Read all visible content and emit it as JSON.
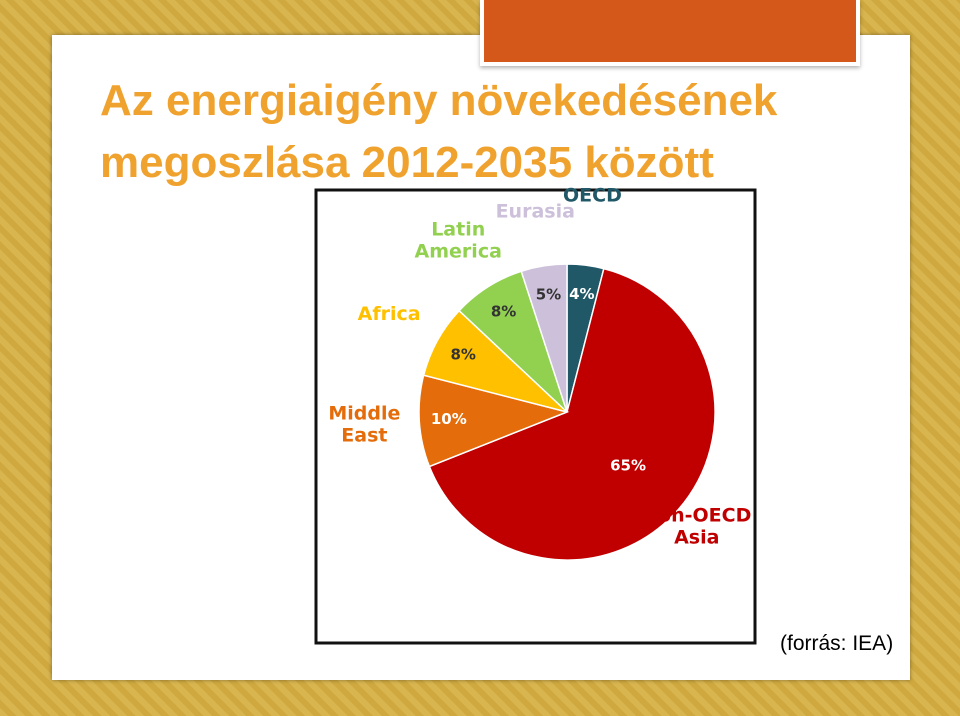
{
  "chart_data": {
    "type": "pie",
    "title": "Az energiaigény növekedésének megoszlása 2012-2035 között",
    "source": "(forrás: IEA)",
    "categories": [
      "OECD",
      "Non-OECD Asia",
      "Middle East",
      "Africa",
      "Latin America",
      "Eurasia"
    ],
    "values": [
      4,
      65,
      10,
      8,
      8,
      5
    ],
    "value_labels": [
      "4%",
      "65%",
      "10%",
      "8%",
      "8%",
      "5%"
    ],
    "colors": [
      "#215868",
      "#c00000",
      "#e46c0a",
      "#ffc000",
      "#92d050",
      "#ccc0da"
    ]
  }
}
